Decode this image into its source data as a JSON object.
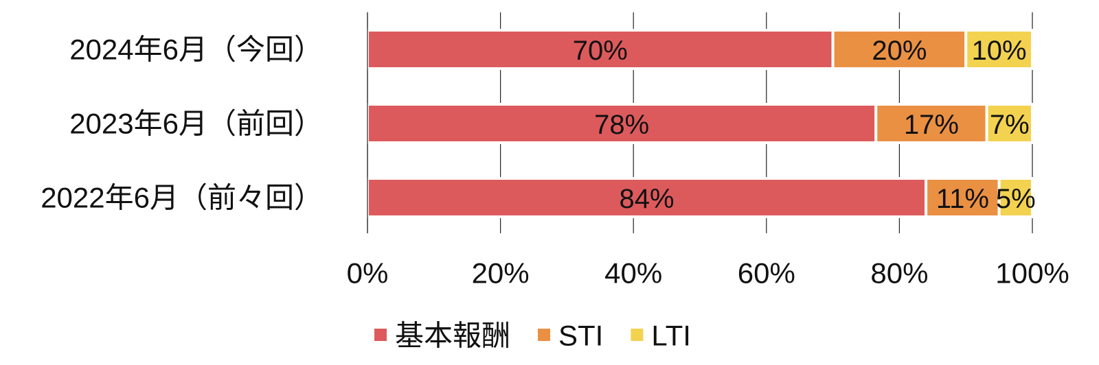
{
  "chart_data": {
    "type": "bar",
    "orientation": "horizontal",
    "stacking": "percent",
    "categories": [
      "2024年6月（今回）",
      "2023年6月（前回）",
      "2022年6月（前々回）"
    ],
    "series": [
      {
        "name": "基本報酬",
        "color": "#dc5a5c",
        "values": [
          70,
          78,
          84
        ],
        "value_labels": [
          "70%",
          "78%",
          "84%"
        ]
      },
      {
        "name": "STI",
        "color": "#ea9043",
        "values": [
          20,
          17,
          11
        ],
        "value_labels": [
          "20%",
          "17%",
          "11%"
        ]
      },
      {
        "name": "LTI",
        "color": "#f3d250",
        "values": [
          10,
          7,
          5
        ],
        "value_labels": [
          "10%",
          "7%",
          "5%"
        ]
      }
    ],
    "xlim": [
      0,
      100
    ],
    "xticks": [
      {
        "value": 0,
        "label": "0%"
      },
      {
        "value": 20,
        "label": "20%"
      },
      {
        "value": 40,
        "label": "40%"
      },
      {
        "value": 60,
        "label": "60%"
      },
      {
        "value": 80,
        "label": "80%"
      },
      {
        "value": 100,
        "label": "100%"
      }
    ],
    "grid": true,
    "legend": "bottom"
  }
}
